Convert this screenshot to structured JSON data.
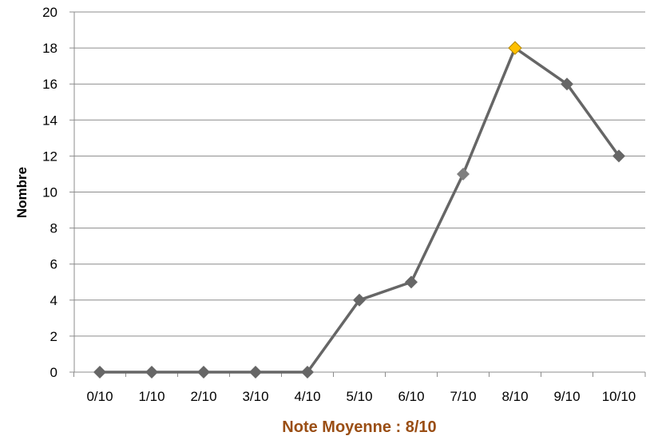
{
  "chart_data": {
    "type": "line",
    "title": "",
    "xlabel": "Note Moyenne : 8/10",
    "ylabel": "Nombre",
    "categories": [
      "0/10",
      "1/10",
      "2/10",
      "3/10",
      "4/10",
      "5/10",
      "6/10",
      "7/10",
      "8/10",
      "9/10",
      "10/10"
    ],
    "series": [
      {
        "values": [
          0,
          0,
          0,
          0,
          0,
          4,
          5,
          11,
          18,
          16,
          12
        ],
        "color": "#666666",
        "marker": "diamond"
      }
    ],
    "highlight": {
      "category": "8/10",
      "color": "#ffc000"
    },
    "ylim": [
      0,
      20
    ],
    "yticks": [
      0,
      2,
      4,
      6,
      8,
      10,
      12,
      14,
      16,
      18,
      20
    ],
    "grid": true,
    "legend": "none",
    "colors": {
      "axis_title_x": "#9a4e14",
      "gridline": "#8c8c8c",
      "marker_light": "#7f7f7f"
    }
  }
}
